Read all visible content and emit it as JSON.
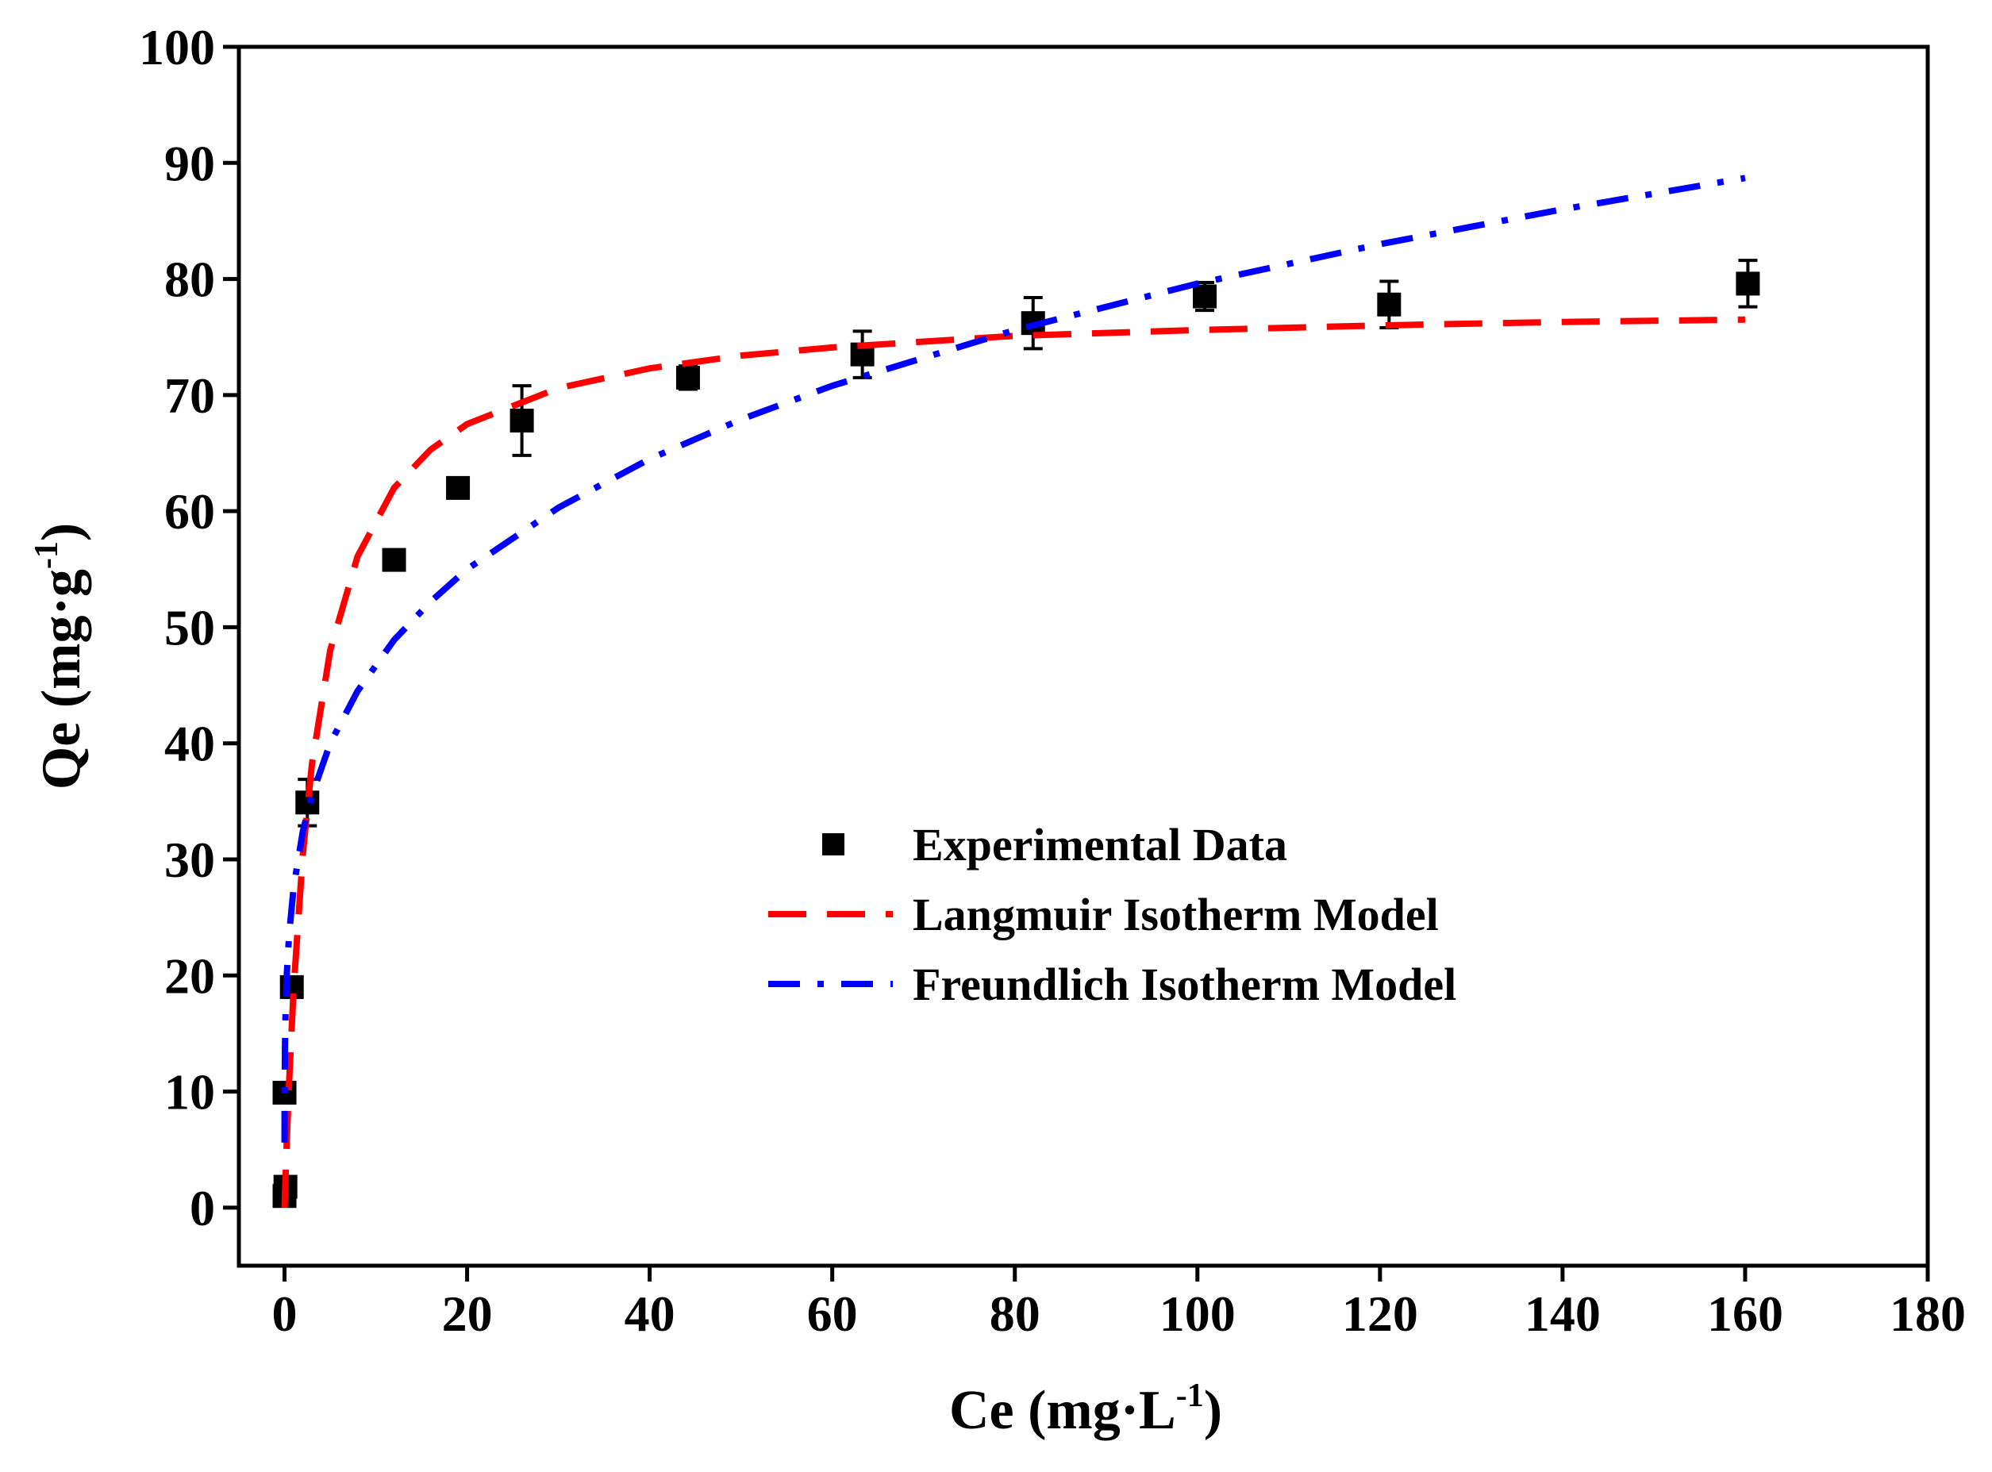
{
  "chart_data": {
    "type": "scatter",
    "x_label": [
      "Ce (mg·L",
      "-1",
      ")"
    ],
    "y_label": [
      "Qe (mg·g",
      "-1",
      ")"
    ],
    "xlim": [
      -5,
      180
    ],
    "xticks": [
      0,
      20,
      40,
      60,
      80,
      100,
      120,
      140,
      160,
      180
    ],
    "ylim": [
      -5,
      100
    ],
    "yticks": [
      0,
      10,
      20,
      30,
      40,
      50,
      60,
      70,
      80,
      90,
      100
    ],
    "series": [
      {
        "name": "Experimental Data",
        "type": "scatter",
        "color": "#000000",
        "x": [
          0,
          0.1,
          0,
          0.8,
          2.5,
          12,
          19,
          26,
          44.2,
          63.3,
          82,
          100.8,
          121,
          160.3
        ],
        "values": [
          1,
          1.8,
          9.9,
          19,
          34.9,
          55.8,
          62,
          67.8,
          71.5,
          73.5,
          76.2,
          78.5,
          77.8,
          79.6
        ],
        "errors": [
          null,
          null,
          null,
          null,
          2,
          null,
          null,
          3,
          1,
          2,
          2.2,
          1.2,
          2,
          2
        ]
      },
      {
        "name": "Langmuir Isotherm Model",
        "type": "line",
        "color": "#ff0000",
        "dash": "dashed",
        "x": [
          0,
          0.25,
          0.5,
          1,
          2,
          3,
          5,
          8,
          12,
          16,
          20,
          30,
          40,
          50,
          60,
          80,
          100,
          120,
          140,
          160
        ],
        "values": [
          0,
          5.8,
          10.8,
          18.9,
          30.4,
          38.2,
          48.0,
          56.1,
          62.0,
          65.3,
          67.5,
          70.6,
          72.3,
          73.4,
          74.1,
          75.1,
          75.6,
          76.0,
          76.3,
          76.5
        ]
      },
      {
        "name": "Freundlich Isotherm Model",
        "type": "line",
        "color": "#0000ff",
        "dash": "dash-dot",
        "x": [
          0.001,
          0.01,
          0.05,
          0.1,
          0.25,
          0.5,
          1,
          2,
          3,
          5,
          8,
          12,
          16,
          20,
          30,
          40,
          50,
          60,
          80,
          100,
          120,
          140,
          160
        ],
        "values": [
          5.6,
          9.6,
          13.9,
          16.2,
          20.1,
          23.5,
          27.6,
          32.4,
          35.5,
          40.0,
          44.5,
          48.9,
          52.2,
          55.0,
          60.3,
          64.5,
          67.9,
          70.8,
          75.6,
          79.6,
          83.0,
          86.0,
          88.7
        ]
      }
    ]
  }
}
